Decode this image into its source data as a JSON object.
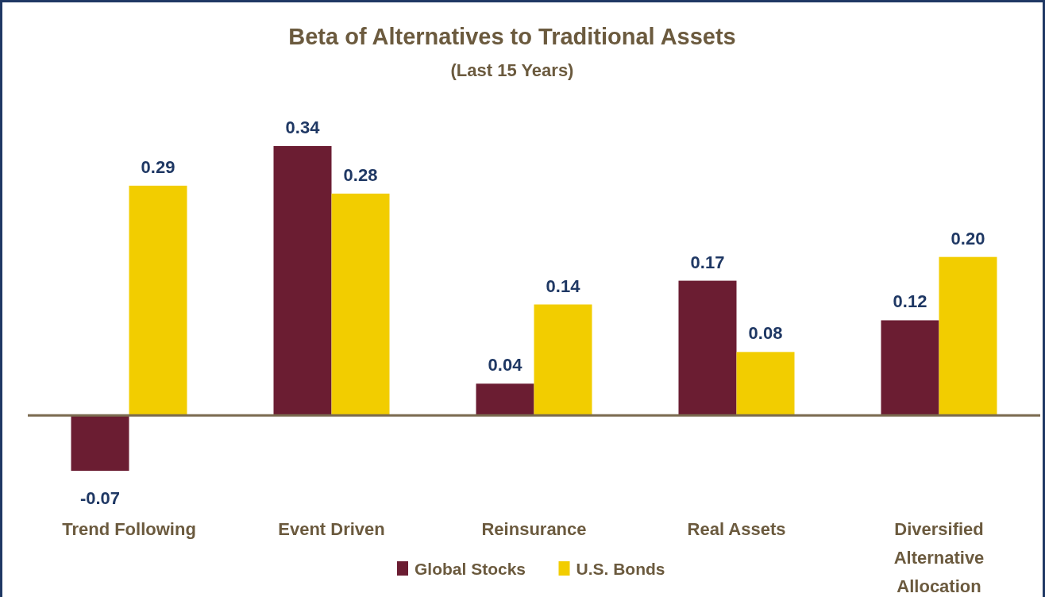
{
  "chart_data": {
    "type": "bar",
    "title": "Beta of Alternatives to Traditional Assets",
    "subtitle": "(Last 15 Years)",
    "categories": [
      "Trend Following",
      "Event Driven",
      "Reinsurance",
      "Real Assets",
      "Diversified Alternative Allocation"
    ],
    "series": [
      {
        "name": "Global Stocks",
        "color": "#6b1d32",
        "values": [
          -0.07,
          0.34,
          0.04,
          0.17,
          0.12
        ],
        "value_labels": [
          "-0.07",
          "0.34",
          "0.04",
          "0.17",
          "0.12"
        ]
      },
      {
        "name": "U.S. Bonds",
        "color": "#f2cd00",
        "values": [
          0.29,
          0.28,
          0.14,
          0.08,
          0.2
        ],
        "value_labels": [
          "0.29",
          "0.28",
          "0.14",
          "0.08",
          "0.20"
        ]
      }
    ],
    "ref_lines": [
      {
        "axis": "y",
        "value": 0,
        "color": "#7a6a4f"
      }
    ],
    "legend": "bottom"
  }
}
